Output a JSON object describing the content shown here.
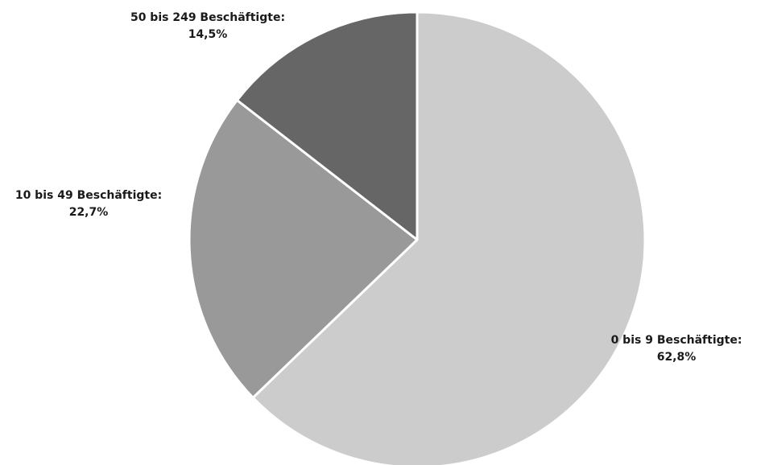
{
  "chart_data": {
    "type": "pie",
    "title": "",
    "series": [
      {
        "categories": [
          "0 bis 9 Beschäftigte",
          "10 bis 49 Beschäftigte",
          "50 bis 249 Beschäftigte"
        ],
        "values": [
          62.8,
          22.7,
          14.5
        ],
        "value_labels": [
          "62,8%",
          "22,7%",
          "14,5%"
        ],
        "colors": [
          "#cccccc",
          "#999999",
          "#666666"
        ]
      }
    ],
    "start_angle": "12 o'clock",
    "direction": "clockwise",
    "slice_border_color": "#ffffff",
    "legend": "none",
    "data_labels": "outside, category name with colon and percentage"
  }
}
